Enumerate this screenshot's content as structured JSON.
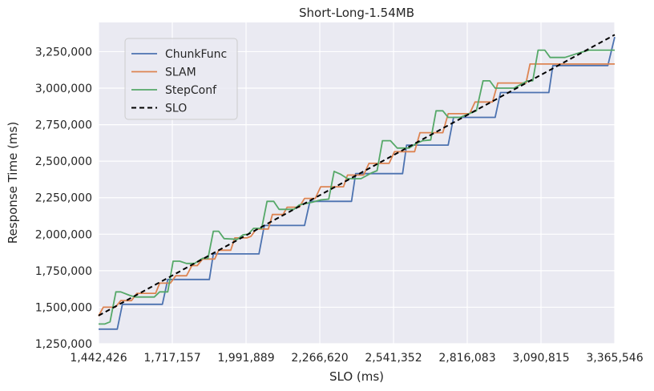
{
  "chart_data": {
    "type": "line",
    "title": "Short-Long-1.54MB",
    "xlabel": "SLO (ms)",
    "ylabel": "Response Time (ms)",
    "xlim": [
      1442426,
      3365546
    ],
    "ylim": [
      1250000,
      3450000
    ],
    "x_ticks": [
      1442426,
      1717157,
      1991889,
      2266620,
      2541352,
      2816083,
      3090815,
      3365546
    ],
    "x_tick_labels": [
      "1,442,426",
      "1,717,157",
      "1,991,889",
      "2,266,620",
      "2,541,352",
      "2,816,083",
      "3,090,815",
      "3,365,546"
    ],
    "y_ticks": [
      1250000,
      1500000,
      1750000,
      2000000,
      2250000,
      2500000,
      2750000,
      3000000,
      3250000
    ],
    "y_tick_labels": [
      "1,250,000",
      "1,500,000",
      "1,750,000",
      "2,000,000",
      "2,250,000",
      "2,500,000",
      "2,750,000",
      "3,000,000",
      "3,250,000"
    ],
    "grid": true,
    "legend_position": "top-left",
    "series": [
      {
        "name": "ChunkFunc",
        "color": "#4c72b0",
        "style": "solid",
        "points": [
          [
            1442426,
            1350000
          ],
          [
            1512000,
            1350000
          ],
          [
            1531000,
            1520000
          ],
          [
            1680000,
            1520000
          ],
          [
            1700000,
            1690000
          ],
          [
            1855000,
            1690000
          ],
          [
            1870000,
            1865000
          ],
          [
            2040000,
            1865000
          ],
          [
            2060000,
            2060000
          ],
          [
            2210000,
            2060000
          ],
          [
            2230000,
            2225000
          ],
          [
            2385000,
            2225000
          ],
          [
            2400000,
            2415000
          ],
          [
            2575000,
            2415000
          ],
          [
            2590000,
            2610000
          ],
          [
            2745000,
            2610000
          ],
          [
            2765000,
            2800000
          ],
          [
            2920000,
            2800000
          ],
          [
            2940000,
            2970000
          ],
          [
            3120000,
            2970000
          ],
          [
            3135000,
            3155000
          ],
          [
            3340000,
            3155000
          ],
          [
            3365546,
            3350000
          ]
        ]
      },
      {
        "name": "SLAM",
        "color": "#dd8452",
        "style": "solid",
        "points": [
          [
            1442426,
            1440000
          ],
          [
            1460000,
            1500000
          ],
          [
            1505000,
            1500000
          ],
          [
            1525000,
            1545000
          ],
          [
            1565000,
            1545000
          ],
          [
            1585000,
            1595000
          ],
          [
            1655000,
            1595000
          ],
          [
            1670000,
            1665000
          ],
          [
            1710000,
            1665000
          ],
          [
            1730000,
            1715000
          ],
          [
            1770000,
            1715000
          ],
          [
            1790000,
            1785000
          ],
          [
            1810000,
            1785000
          ],
          [
            1830000,
            1830000
          ],
          [
            1875000,
            1830000
          ],
          [
            1890000,
            1890000
          ],
          [
            1935000,
            1890000
          ],
          [
            1950000,
            1975000
          ],
          [
            1995000,
            1975000
          ],
          [
            2010000,
            1985000
          ],
          [
            2030000,
            2035000
          ],
          [
            2075000,
            2035000
          ],
          [
            2090000,
            2135000
          ],
          [
            2130000,
            2135000
          ],
          [
            2145000,
            2185000
          ],
          [
            2190000,
            2185000
          ],
          [
            2210000,
            2245000
          ],
          [
            2250000,
            2245000
          ],
          [
            2270000,
            2325000
          ],
          [
            2355000,
            2325000
          ],
          [
            2370000,
            2405000
          ],
          [
            2430000,
            2405000
          ],
          [
            2450000,
            2485000
          ],
          [
            2525000,
            2485000
          ],
          [
            2545000,
            2565000
          ],
          [
            2620000,
            2565000
          ],
          [
            2640000,
            2695000
          ],
          [
            2725000,
            2695000
          ],
          [
            2745000,
            2825000
          ],
          [
            2825000,
            2825000
          ],
          [
            2845000,
            2905000
          ],
          [
            2910000,
            2905000
          ],
          [
            2930000,
            3035000
          ],
          [
            3035000,
            3035000
          ],
          [
            3050000,
            3165000
          ],
          [
            3365546,
            3165000
          ]
        ]
      },
      {
        "name": "StepConf",
        "color": "#55a868",
        "style": "solid",
        "points": [
          [
            1442426,
            1385000
          ],
          [
            1465000,
            1385000
          ],
          [
            1485000,
            1400000
          ],
          [
            1507000,
            1605000
          ],
          [
            1525000,
            1605000
          ],
          [
            1560000,
            1580000
          ],
          [
            1580000,
            1570000
          ],
          [
            1650000,
            1570000
          ],
          [
            1670000,
            1605000
          ],
          [
            1700000,
            1605000
          ],
          [
            1720000,
            1815000
          ],
          [
            1745000,
            1815000
          ],
          [
            1770000,
            1800000
          ],
          [
            1800000,
            1800000
          ],
          [
            1830000,
            1835000
          ],
          [
            1850000,
            1835000
          ],
          [
            1870000,
            2020000
          ],
          [
            1890000,
            2020000
          ],
          [
            1910000,
            1970000
          ],
          [
            1960000,
            1965000
          ],
          [
            1980000,
            1995000
          ],
          [
            2000000,
            2000000
          ],
          [
            2020000,
            2040000
          ],
          [
            2050000,
            2040000
          ],
          [
            2070000,
            2225000
          ],
          [
            2095000,
            2225000
          ],
          [
            2115000,
            2170000
          ],
          [
            2170000,
            2170000
          ],
          [
            2190000,
            2200000
          ],
          [
            2240000,
            2220000
          ],
          [
            2270000,
            2235000
          ],
          [
            2300000,
            2240000
          ],
          [
            2320000,
            2430000
          ],
          [
            2345000,
            2410000
          ],
          [
            2370000,
            2380000
          ],
          [
            2420000,
            2380000
          ],
          [
            2460000,
            2420000
          ],
          [
            2480000,
            2435000
          ],
          [
            2500000,
            2640000
          ],
          [
            2530000,
            2640000
          ],
          [
            2555000,
            2590000
          ],
          [
            2600000,
            2590000
          ],
          [
            2625000,
            2620000
          ],
          [
            2650000,
            2640000
          ],
          [
            2680000,
            2645000
          ],
          [
            2700000,
            2845000
          ],
          [
            2725000,
            2845000
          ],
          [
            2745000,
            2800000
          ],
          [
            2790000,
            2800000
          ],
          [
            2810000,
            2815000
          ],
          [
            2850000,
            2845000
          ],
          [
            2875000,
            3050000
          ],
          [
            2900000,
            3050000
          ],
          [
            2920000,
            3000000
          ],
          [
            2990000,
            3000000
          ],
          [
            3010000,
            3020000
          ],
          [
            3040000,
            3050000
          ],
          [
            3060000,
            3050000
          ],
          [
            3080000,
            3260000
          ],
          [
            3105000,
            3260000
          ],
          [
            3125000,
            3210000
          ],
          [
            3180000,
            3210000
          ],
          [
            3230000,
            3240000
          ],
          [
            3270000,
            3260000
          ],
          [
            3365546,
            3260000
          ]
        ]
      },
      {
        "name": "SLO",
        "color": "#000000",
        "style": "dashed",
        "points": [
          [
            1442426,
            1442426
          ],
          [
            3365546,
            3365546
          ]
        ]
      }
    ]
  }
}
